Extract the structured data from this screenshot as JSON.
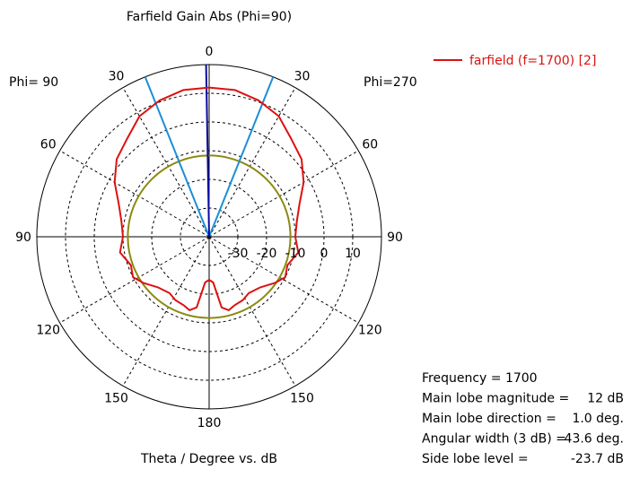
{
  "chart_data": {
    "type": "polar",
    "title": "Farfield Gain Abs (Phi=90)",
    "xlabel": "Theta / Degree vs. dB",
    "left_half_label": "Phi= 90",
    "right_half_label": "Phi=270",
    "radial_range_db": [
      -40,
      20
    ],
    "radial_ticks": [
      "-30",
      "-20",
      "-10",
      "0",
      "10"
    ],
    "radial_tick_values": [
      -30,
      -20,
      -10,
      0,
      10
    ],
    "grid_rings_db": [
      -30,
      -20,
      -10,
      0,
      10
    ],
    "grid_spokes_deg": [
      30,
      60,
      90,
      120,
      150
    ],
    "angle_labels": [
      {
        "text": "0",
        "theta": 0
      },
      {
        "text": "30",
        "theta": 30
      },
      {
        "text": "60",
        "theta": 60
      },
      {
        "text": "90",
        "theta": 90
      },
      {
        "text": "120",
        "theta": 120
      },
      {
        "text": "150",
        "theta": 150
      },
      {
        "text": "180",
        "theta": 180
      },
      {
        "text": "30",
        "theta": -30
      },
      {
        "text": "60",
        "theta": -60
      },
      {
        "text": "90",
        "theta": -90
      },
      {
        "text": "120",
        "theta": -120
      },
      {
        "text": "150",
        "theta": -150
      }
    ],
    "legend": {
      "position": "top-right"
    },
    "series": [
      {
        "name": "farfield (f=1700) [2]",
        "color": "#dd1111",
        "points": [
          {
            "theta": 0,
            "db": 12
          },
          {
            "theta": 10,
            "db": 11.9
          },
          {
            "theta": 20,
            "db": 10.5
          },
          {
            "theta": 30,
            "db": 8.5
          },
          {
            "theta": 40,
            "db": 4.5
          },
          {
            "theta": 50,
            "db": 2.0
          },
          {
            "theta": 60,
            "db": -2.0
          },
          {
            "theta": 70,
            "db": -6.5
          },
          {
            "theta": 80,
            "db": -9.0
          },
          {
            "theta": 90,
            "db": -10.0
          },
          {
            "theta": 100,
            "db": -8.5
          },
          {
            "theta": 110,
            "db": -11.0
          },
          {
            "theta": 118,
            "db": -10.0
          },
          {
            "theta": 125,
            "db": -12.0
          },
          {
            "theta": 135,
            "db": -15.0
          },
          {
            "theta": 145,
            "db": -16.0
          },
          {
            "theta": 152,
            "db": -15.0
          },
          {
            "theta": 160,
            "db": -14.5
          },
          {
            "theta": 165,
            "db": -13.5
          },
          {
            "theta": 170,
            "db": -15.0
          },
          {
            "theta": 175,
            "db": -24.0
          },
          {
            "theta": 180,
            "db": -25.0
          },
          {
            "theta": 185,
            "db": -24.0
          },
          {
            "theta": 190,
            "db": -15.0
          },
          {
            "theta": 195,
            "db": -13.5
          },
          {
            "theta": 200,
            "db": -14.5
          },
          {
            "theta": 208,
            "db": -15.0
          },
          {
            "theta": 215,
            "db": -16.0
          },
          {
            "theta": 225,
            "db": -15.0
          },
          {
            "theta": 235,
            "db": -12.0
          },
          {
            "theta": 242,
            "db": -10.0
          },
          {
            "theta": 250,
            "db": -11.0
          },
          {
            "theta": 260,
            "db": -8.5
          },
          {
            "theta": 270,
            "db": -10.0
          },
          {
            "theta": 280,
            "db": -9.0
          },
          {
            "theta": 290,
            "db": -6.5
          },
          {
            "theta": 300,
            "db": -2.0
          },
          {
            "theta": 310,
            "db": 2.0
          },
          {
            "theta": 320,
            "db": 4.5
          },
          {
            "theta": 330,
            "db": 8.5
          },
          {
            "theta": 340,
            "db": 10.5
          },
          {
            "theta": 350,
            "db": 11.9
          },
          {
            "theta": 360,
            "db": 12
          }
        ]
      }
    ],
    "markers": {
      "main_lobe_direction_deg": 1.0,
      "main_lobe_color": "#0a0aa0",
      "beamwidth_edges_deg": [
        -21.8,
        21.8
      ],
      "beamwidth_color": "#1a8fd6",
      "sidelobe_level_db": -11.7,
      "sidelobe_color": "#8a8a10"
    },
    "info": [
      {
        "label": "Frequency = 1700",
        "value": ""
      },
      {
        "label": "Main lobe magnitude =",
        "value": "12 dB"
      },
      {
        "label": "Main lobe direction =",
        "value": "1.0 deg."
      },
      {
        "label": "Angular width (3 dB) =",
        "value": "43.6 deg."
      },
      {
        "label": "Side lobe level =",
        "value": "-23.7 dB"
      }
    ]
  }
}
